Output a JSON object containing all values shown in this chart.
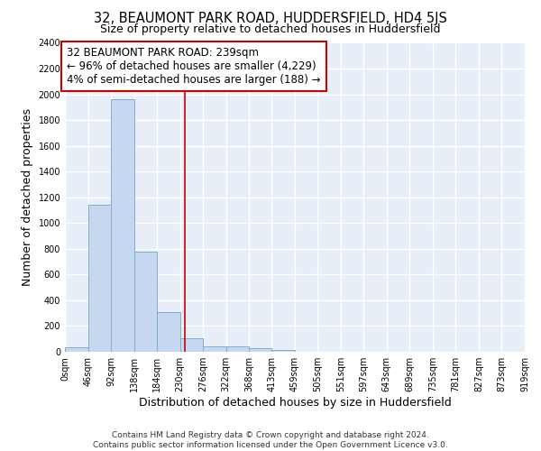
{
  "title_line1": "32, BEAUMONT PARK ROAD, HUDDERSFIELD, HD4 5JS",
  "title_line2": "Size of property relative to detached houses in Huddersfield",
  "xlabel": "Distribution of detached houses by size in Huddersfield",
  "ylabel": "Number of detached properties",
  "bin_edges": [
    0,
    46,
    92,
    138,
    184,
    230,
    276,
    322,
    368,
    413,
    459,
    505,
    551,
    597,
    643,
    689,
    735,
    781,
    827,
    873,
    919
  ],
  "bin_counts": [
    35,
    1140,
    1960,
    780,
    305,
    105,
    45,
    40,
    25,
    15,
    0,
    0,
    0,
    0,
    0,
    0,
    0,
    0,
    0,
    0
  ],
  "bar_color": "#c5d8f0",
  "bar_edge_color": "#7bafd4",
  "property_size": 239,
  "vline_color": "#cc0000",
  "annotation_line1": "32 BEAUMONT PARK ROAD: 239sqm",
  "annotation_line2": "← 96% of detached houses are smaller (4,229)",
  "annotation_line3": "4% of semi-detached houses are larger (188) →",
  "annotation_box_color": "#cc0000",
  "background_color": "#e8eef8",
  "grid_color": "#ffffff",
  "ylim": [
    0,
    2400
  ],
  "yticks": [
    0,
    200,
    400,
    600,
    800,
    1000,
    1200,
    1400,
    1600,
    1800,
    2000,
    2200,
    2400
  ],
  "tick_labels": [
    "0sqm",
    "46sqm",
    "92sqm",
    "138sqm",
    "184sqm",
    "230sqm",
    "276sqm",
    "322sqm",
    "368sqm",
    "413sqm",
    "459sqm",
    "505sqm",
    "551sqm",
    "597sqm",
    "643sqm",
    "689sqm",
    "735sqm",
    "781sqm",
    "827sqm",
    "873sqm",
    "919sqm"
  ],
  "footer_text": "Contains HM Land Registry data © Crown copyright and database right 2024.\nContains public sector information licensed under the Open Government Licence v3.0.",
  "title_fontsize": 10.5,
  "subtitle_fontsize": 9,
  "axis_label_fontsize": 9,
  "tick_fontsize": 7,
  "annotation_fontsize": 8.5,
  "footer_fontsize": 6.5
}
